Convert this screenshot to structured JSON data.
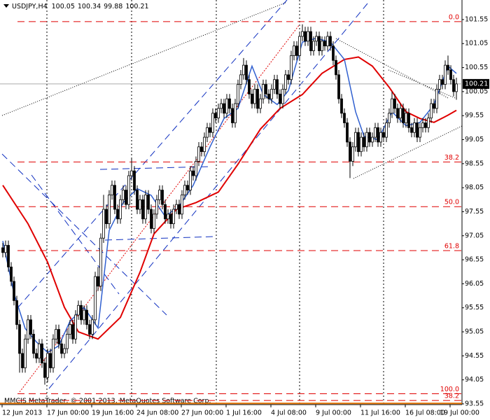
{
  "chart_data": {
    "type": "candlestick",
    "title": "USDJPY,H4",
    "caption": "MMCIS MetaTrader, © 2001-2013, MetaQuotes Software Corp.",
    "bull_color": "#ffffff",
    "bear_color": "#000000",
    "wick_color": "#000000",
    "ylim": [
      93.535,
      101.957
    ],
    "yticks": [
      101.55,
      101.05,
      100.55,
      100.05,
      99.55,
      99.05,
      98.55,
      98.05,
      97.55,
      97.05,
      96.55,
      96.05,
      95.55,
      95.05,
      94.55,
      94.05,
      93.55
    ],
    "categories": [
      "12 Jun 2013",
      null,
      null,
      null,
      null,
      null,
      null,
      null,
      null,
      null,
      null,
      null,
      null,
      null,
      null,
      null,
      "17 Jun 00:00",
      null,
      null,
      null,
      null,
      null,
      null,
      null,
      null,
      null,
      null,
      null,
      null,
      null,
      null,
      null,
      "19 Jun 16:00",
      null,
      null,
      null,
      null,
      null,
      null,
      null,
      null,
      null,
      null,
      null,
      null,
      null,
      null,
      null,
      "24 Jun 08:00",
      null,
      null,
      null,
      null,
      null,
      null,
      null,
      null,
      null,
      null,
      null,
      null,
      null,
      null,
      null,
      "27 Jun 00:00",
      null,
      null,
      null,
      null,
      null,
      null,
      null,
      null,
      null,
      null,
      null,
      null,
      null,
      null,
      null,
      "1 Jul 16:00",
      null,
      null,
      null,
      null,
      null,
      null,
      null,
      null,
      null,
      null,
      null,
      null,
      null,
      null,
      null,
      "4 Jul 08:00",
      null,
      null,
      null,
      null,
      null,
      null,
      null,
      null,
      null,
      null,
      null,
      null,
      null,
      null,
      null,
      "9 Jul 00:00",
      null,
      null,
      null,
      null,
      null,
      null,
      null,
      null,
      null,
      null,
      null,
      null,
      null,
      null,
      null,
      "11 Jul 16:00",
      null,
      null,
      null,
      null,
      null,
      null,
      null,
      null,
      null,
      null,
      null,
      null,
      null,
      null,
      null,
      "16 Jul 08:00",
      null,
      null,
      null,
      null,
      null,
      null,
      null,
      null,
      null,
      null,
      null,
      null,
      null,
      null,
      null,
      "19 Jul 00:00",
      null,
      null
    ],
    "open": [
      96.8,
      96.7,
      96.85,
      96.4,
      96.1,
      95.7,
      95.2,
      94.6,
      94.3,
      94.9,
      95.3,
      95.0,
      94.6,
      94.5,
      94.8,
      94.4,
      94.1,
      94.6,
      94.3,
      94.9,
      95.1,
      94.8,
      94.6,
      94.7,
      95.0,
      95.2,
      94.9,
      95.4,
      95.6,
      95.3,
      95.5,
      95.2,
      95.0,
      95.3,
      96.2,
      96.0,
      97.0,
      97.6,
      97.3,
      97.9,
      98.1,
      97.6,
      97.4,
      97.8,
      98.0,
      97.7,
      98.3,
      98.4,
      98.0,
      97.6,
      97.8,
      97.4,
      97.9,
      97.6,
      97.2,
      97.5,
      97.8,
      98.0,
      97.7,
      97.4,
      97.5,
      97.3,
      97.6,
      97.7,
      97.5,
      97.9,
      98.1,
      98.0,
      98.4,
      98.3,
      98.6,
      98.9,
      98.8,
      99.1,
      99.3,
      99.2,
      99.6,
      99.5,
      99.7,
      99.8,
      99.6,
      99.9,
      99.7,
      99.4,
      99.8,
      100.2,
      100.4,
      100.6,
      100.3,
      100.0,
      99.8,
      100.1,
      99.7,
      99.9,
      100.2,
      100.0,
      99.9,
      100.1,
      100.3,
      100.0,
      99.8,
      100.1,
      100.4,
      100.3,
      100.8,
      101.0,
      100.8,
      101.2,
      101.3,
      101.1,
      101.3,
      100.9,
      101.1,
      101.2,
      100.9,
      101.1,
      101.0,
      101.2,
      101.0,
      100.7,
      100.4,
      99.9,
      99.6,
      99.4,
      99.0,
      98.6,
      98.9,
      99.2,
      98.8,
      99.1,
      98.9,
      99.2,
      99.0,
      99.1,
      99.3,
      99.0,
      99.2,
      99.1,
      99.4,
      99.6,
      99.9,
      99.7,
      99.5,
      99.7,
      99.4,
      99.6,
      99.3,
      99.2,
      99.4,
      99.1,
      99.3,
      99.4,
      99.3,
      99.5,
      99.8,
      99.7,
      100.1,
      100.3,
      100.2,
      100.6,
      100.5,
      100.3,
      100.05
    ],
    "high": [
      96.9,
      96.95,
      96.95,
      96.5,
      96.2,
      95.8,
      95.3,
      94.7,
      95.0,
      95.4,
      95.4,
      95.1,
      94.7,
      94.9,
      94.9,
      94.5,
      94.7,
      94.7,
      95.0,
      95.2,
      95.2,
      94.9,
      94.8,
      95.1,
      95.3,
      95.3,
      95.5,
      95.7,
      95.7,
      95.6,
      95.6,
      95.3,
      95.4,
      96.3,
      96.4,
      97.1,
      97.9,
      97.7,
      98.0,
      98.2,
      98.2,
      97.7,
      97.9,
      98.1,
      98.1,
      98.4,
      98.65,
      98.5,
      98.1,
      97.9,
      97.9,
      98.0,
      98.0,
      97.7,
      97.6,
      97.9,
      98.1,
      98.1,
      97.8,
      97.6,
      97.6,
      97.7,
      97.8,
      97.8,
      98.0,
      98.2,
      98.2,
      98.5,
      98.5,
      98.7,
      99.0,
      99.0,
      99.2,
      99.4,
      99.4,
      99.7,
      99.7,
      99.8,
      99.9,
      99.9,
      100.0,
      100.0,
      99.8,
      99.9,
      100.3,
      100.5,
      100.75,
      100.7,
      100.4,
      100.1,
      100.2,
      100.2,
      100.0,
      100.3,
      100.3,
      100.1,
      100.2,
      100.4,
      100.4,
      100.1,
      100.2,
      100.5,
      100.5,
      100.9,
      101.1,
      101.1,
      101.3,
      101.45,
      101.4,
      101.4,
      101.4,
      101.2,
      101.3,
      101.3,
      101.2,
      101.2,
      101.3,
      101.3,
      101.1,
      100.8,
      100.5,
      100.0,
      99.7,
      99.5,
      99.1,
      99.0,
      99.3,
      99.3,
      99.2,
      99.2,
      99.3,
      99.3,
      99.2,
      99.4,
      99.4,
      99.3,
      99.3,
      99.5,
      99.7,
      100.05,
      100.0,
      99.8,
      99.8,
      99.8,
      99.7,
      99.7,
      99.4,
      99.5,
      99.5,
      99.4,
      99.5,
      99.5,
      99.6,
      99.9,
      99.9,
      100.2,
      100.4,
      100.4,
      100.7,
      100.8,
      100.6,
      100.4,
      100.34
    ],
    "low": [
      96.6,
      96.6,
      96.3,
      96.0,
      95.6,
      95.1,
      94.2,
      94.2,
      94.2,
      94.8,
      94.9,
      94.5,
      94.4,
      94.4,
      94.3,
      93.95,
      94.0,
      94.2,
      94.2,
      94.8,
      94.7,
      94.5,
      94.5,
      94.6,
      94.9,
      94.8,
      94.8,
      95.3,
      95.2,
      95.2,
      95.1,
      94.9,
      94.9,
      95.2,
      95.9,
      95.9,
      96.9,
      97.2,
      97.2,
      97.8,
      97.5,
      97.3,
      97.3,
      97.7,
      97.6,
      97.6,
      98.2,
      97.9,
      97.5,
      97.5,
      97.3,
      97.3,
      97.5,
      97.1,
      97.1,
      97.4,
      97.7,
      97.6,
      97.3,
      97.3,
      97.2,
      97.2,
      97.5,
      97.4,
      97.4,
      97.8,
      97.9,
      97.9,
      98.2,
      98.2,
      98.5,
      98.7,
      98.7,
      99.0,
      99.1,
      99.1,
      99.4,
      99.4,
      99.6,
      99.5,
      99.5,
      99.6,
      99.3,
      99.3,
      99.7,
      100.1,
      100.3,
      100.2,
      99.9,
      99.7,
      99.7,
      99.6,
      99.6,
      99.8,
      99.9,
      99.8,
      99.8,
      100.0,
      99.9,
      99.7,
      99.7,
      100.0,
      100.2,
      100.2,
      100.7,
      100.7,
      100.7,
      101.1,
      101.0,
      101.0,
      100.8,
      100.8,
      101.0,
      100.8,
      100.8,
      100.9,
      100.9,
      100.9,
      100.6,
      100.3,
      99.8,
      99.5,
      99.3,
      98.9,
      98.25,
      98.5,
      98.8,
      98.7,
      98.7,
      98.8,
      98.8,
      98.9,
      98.9,
      99.0,
      98.9,
      98.9,
      99.0,
      99.0,
      99.3,
      99.5,
      99.6,
      99.4,
      99.4,
      99.3,
      99.3,
      99.2,
      99.1,
      99.1,
      99.0,
      99.0,
      99.2,
      99.2,
      99.2,
      99.4,
      99.6,
      99.6,
      100.0,
      100.1,
      100.1,
      100.4,
      100.2,
      99.95,
      99.88
    ],
    "close": [
      96.7,
      96.85,
      96.4,
      96.1,
      95.7,
      95.2,
      94.6,
      94.3,
      94.9,
      95.3,
      95.0,
      94.6,
      94.5,
      94.8,
      94.4,
      94.1,
      94.6,
      94.3,
      94.9,
      95.1,
      94.8,
      94.6,
      94.7,
      95.0,
      95.2,
      94.9,
      95.4,
      95.6,
      95.3,
      95.5,
      95.2,
      95.0,
      95.3,
      96.2,
      96.0,
      97.0,
      97.6,
      97.3,
      97.9,
      98.1,
      97.6,
      97.4,
      97.8,
      98.0,
      97.7,
      98.3,
      98.4,
      98.0,
      97.6,
      97.8,
      97.4,
      97.9,
      97.6,
      97.2,
      97.5,
      97.8,
      98.0,
      97.7,
      97.4,
      97.5,
      97.3,
      97.6,
      97.7,
      97.5,
      97.9,
      98.1,
      98.0,
      98.4,
      98.3,
      98.6,
      98.9,
      98.8,
      99.1,
      99.3,
      99.2,
      99.6,
      99.5,
      99.7,
      99.8,
      99.6,
      99.9,
      99.7,
      99.4,
      99.8,
      100.2,
      100.4,
      100.6,
      100.3,
      100.0,
      99.8,
      100.1,
      99.7,
      99.9,
      100.2,
      100.0,
      99.9,
      100.1,
      100.3,
      100.0,
      99.8,
      100.1,
      100.4,
      100.3,
      100.8,
      101.0,
      100.8,
      101.2,
      101.3,
      101.1,
      101.3,
      100.9,
      101.1,
      101.2,
      100.9,
      101.1,
      101.0,
      101.2,
      101.0,
      100.7,
      100.4,
      99.9,
      99.6,
      99.4,
      99.0,
      98.6,
      98.9,
      99.2,
      98.8,
      99.1,
      98.9,
      99.2,
      99.0,
      99.1,
      99.3,
      99.0,
      99.2,
      99.1,
      99.4,
      99.6,
      99.9,
      99.7,
      99.5,
      99.7,
      99.4,
      99.6,
      99.3,
      99.2,
      99.4,
      99.1,
      99.3,
      99.4,
      99.3,
      99.5,
      99.8,
      99.7,
      100.1,
      100.3,
      100.2,
      100.6,
      100.5,
      100.3,
      100.05,
      100.21
    ],
    "series": [
      {
        "color": "#e00000",
        "x": [
          0,
          9,
          16,
          22,
          27,
          34,
          42,
          49,
          54,
          62,
          69,
          77,
          84,
          92,
          99,
          107,
          114,
          122,
          127,
          132,
          138,
          144,
          149,
          154,
          159,
          162
        ],
        "values": [
          98.1,
          97.3,
          96.5,
          95.56,
          95.05,
          94.9,
          95.35,
          96.29,
          97.09,
          97.6,
          97.74,
          97.96,
          98.54,
          99.27,
          99.7,
          99.99,
          100.43,
          100.72,
          100.77,
          100.58,
          100.14,
          99.63,
          99.49,
          99.41,
          99.56,
          99.66
        ]
      },
      {
        "color": "#3060d0",
        "x": [
          0,
          4,
          8,
          12,
          16,
          20,
          24,
          29,
          34,
          38,
          43,
          48,
          53,
          58,
          63,
          68,
          74,
          79,
          84,
          89,
          93,
          98,
          102,
          107,
          112,
          117,
          122,
          126,
          129,
          134,
          139,
          144,
          149,
          154,
          159,
          162
        ],
        "values": [
          96.94,
          95.85,
          95.12,
          94.84,
          94.62,
          94.76,
          95.27,
          95.56,
          95.13,
          97.16,
          97.74,
          98.03,
          97.89,
          97.45,
          97.67,
          98.1,
          98.9,
          99.49,
          99.7,
          100.58,
          99.99,
          99.78,
          100.07,
          101.08,
          101.16,
          101.08,
          100.72,
          99.63,
          99.12,
          99.05,
          99.63,
          99.34,
          99.41,
          99.78,
          100.58,
          100.43
        ]
      }
    ],
    "fibo_color": "#e00000",
    "fibo_levels": [
      {
        "value": 101.507,
        "label": "0.0"
      },
      {
        "value": 98.585,
        "label": "38.2"
      },
      {
        "value": 97.655,
        "label": "50.0"
      },
      {
        "value": 96.74,
        "label": "61.8"
      },
      {
        "value": 93.76,
        "label": "100.0"
      },
      {
        "value": 93.62,
        "label": "38.2"
      }
    ],
    "hline": {
      "value": 93.56,
      "color": "#e07000"
    }
  }
}
